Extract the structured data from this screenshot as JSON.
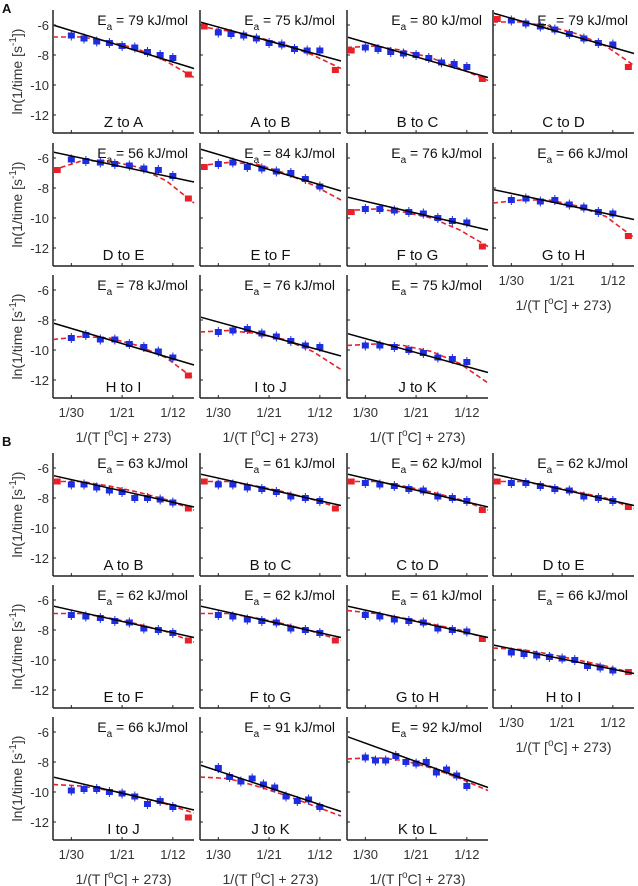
{
  "figure": {
    "panel_letters": [
      "A",
      "B"
    ],
    "ylabel": "ln(1/time [s^-1])",
    "ylabel_parts": {
      "main": "ln(1/time [s",
      "sup": "-1",
      "end": "])"
    },
    "xlabel_parts": {
      "pre": "1/(T [",
      "sup": "o",
      "post": "C] + 273)"
    },
    "xlabel": "1/(T [oC] + 273)",
    "colors": {
      "fit_line": "#000000",
      "model_curve": "#e8202a",
      "points_used": "#1f2de0",
      "points_excluded": "#e8202a",
      "axis": "#222222"
    }
  },
  "chart_data": [
    {
      "panel": "A",
      "type": "scatter",
      "xlabel": "1/(T [oC] + 273)",
      "ylabel": "ln(1/time [s^-1])",
      "x_ticks": [
        "1/30",
        "1/21",
        "1/12"
      ],
      "y_ticks": [
        -6,
        -8,
        -10,
        -12
      ],
      "ylim": [
        -13.2,
        -5.0
      ],
      "grid": false,
      "subplots": [
        {
          "label": "Z to A",
          "ea": "79",
          "line": [
            -6.0,
            -8.9
          ],
          "curve": [
            -6.8,
            -6.8,
            -7.1,
            -7.6,
            -8.4,
            -9.5
          ],
          "points": [
            -6.7,
            -6.9,
            -7.1,
            -7.2,
            -7.4,
            -7.5,
            -7.8,
            -8.0,
            -8.2
          ],
          "red_pts": [
            -9.3
          ]
        },
        {
          "label": "A to B",
          "ea": "75",
          "line": [
            -5.8,
            -8.4
          ],
          "curve": [
            -6.1,
            -6.4,
            -6.8,
            -7.3,
            -8.0,
            -8.9
          ],
          "points": [
            -6.5,
            -6.6,
            -6.7,
            -6.9,
            -7.2,
            -7.3,
            -7.6,
            -7.7,
            -7.7
          ],
          "red_pts": [
            -6.1,
            -9.0
          ]
        },
        {
          "label": "B to C",
          "ea": "80",
          "line": [
            -6.8,
            -9.5
          ],
          "curve": [
            -7.5,
            -7.4,
            -7.7,
            -8.2,
            -8.9,
            -9.7
          ],
          "points": [
            -7.5,
            -7.6,
            -7.8,
            -7.9,
            -8.0,
            -8.2,
            -8.5,
            -8.6,
            -8.8
          ],
          "red_pts": [
            -7.7,
            -9.6
          ]
        },
        {
          "label": "C to D",
          "ea": "79",
          "line": [
            -5.2,
            -7.9
          ],
          "curve": [
            -5.8,
            -5.8,
            -6.1,
            -6.6,
            -7.4,
            -8.7
          ],
          "points": [
            -5.7,
            -5.9,
            -6.1,
            -6.3,
            -6.6,
            -6.9,
            -7.2,
            -7.3
          ],
          "red_pts": [
            -5.6,
            -8.8
          ]
        },
        {
          "label": "D to E",
          "ea": "56",
          "line": [
            -5.6,
            -7.6
          ],
          "curve": [
            -6.8,
            -6.2,
            -6.2,
            -6.6,
            -7.5,
            -9.0
          ],
          "points": [
            -6.1,
            -6.2,
            -6.3,
            -6.4,
            -6.5,
            -6.7,
            -6.8,
            -7.2
          ],
          "red_pts": [
            -6.8,
            -8.7
          ]
        },
        {
          "label": "E to F",
          "ea": "84",
          "line": [
            -5.4,
            -8.2
          ],
          "curve": [
            -6.5,
            -6.3,
            -6.4,
            -7.0,
            -7.8,
            -8.8
          ],
          "points": [
            -6.4,
            -6.3,
            -6.6,
            -6.7,
            -6.9,
            -7.0,
            -7.4,
            -7.9
          ],
          "red_pts": [
            -6.6
          ]
        },
        {
          "label": "F to G",
          "ea": "76",
          "line": [
            -8.6,
            -10.8
          ],
          "curve": [
            -9.5,
            -9.4,
            -9.6,
            -10.0,
            -10.8,
            -11.9
          ],
          "points": [
            -9.4,
            -9.4,
            -9.5,
            -9.6,
            -9.7,
            -10.0,
            -10.2,
            -10.3
          ],
          "red_pts": [
            -9.6,
            -11.9
          ]
        },
        {
          "label": "G to H",
          "ea": "66",
          "line": [
            -8.1,
            -10.1
          ],
          "curve": [
            -9.0,
            -8.8,
            -8.8,
            -9.2,
            -9.9,
            -11.3
          ],
          "points": [
            -8.8,
            -8.7,
            -8.9,
            -8.8,
            -9.1,
            -9.3,
            -9.6,
            -9.7
          ],
          "red_pts": [
            -11.2
          ]
        },
        {
          "label": "H to I",
          "ea": "78",
          "line": [
            -8.2,
            -11.0
          ],
          "curve": [
            -9.3,
            -9.1,
            -9.2,
            -9.7,
            -10.5,
            -11.9
          ],
          "points": [
            -9.2,
            -9.0,
            -9.3,
            -9.3,
            -9.6,
            -9.8,
            -10.1,
            -10.5
          ],
          "red_pts": [
            -11.7
          ]
        },
        {
          "label": "I to J",
          "ea": "76",
          "line": [
            -7.8,
            -10.4
          ],
          "curve": [
            -8.8,
            -8.7,
            -8.9,
            -9.3,
            -10.1,
            -11.3
          ],
          "points": [
            -8.8,
            -8.7,
            -8.6,
            -8.9,
            -9.1,
            -9.4,
            -9.7,
            -9.8
          ],
          "red_pts": []
        },
        {
          "label": "J to K",
          "ea": "75",
          "line": [
            -8.9,
            -11.5
          ],
          "curve": [
            -9.7,
            -9.6,
            -9.7,
            -10.1,
            -10.9,
            -12.2
          ],
          "points": [
            -9.7,
            -9.7,
            -9.8,
            -10.0,
            -10.2,
            -10.5,
            -10.6,
            -10.8
          ],
          "red_pts": []
        }
      ]
    },
    {
      "panel": "B",
      "type": "scatter",
      "xlabel": "1/(T [oC] + 273)",
      "ylabel": "ln(1/time [s^-1])",
      "x_ticks": [
        "1/30",
        "1/21",
        "1/12"
      ],
      "y_ticks": [
        -6,
        -8,
        -10,
        -12
      ],
      "ylim": [
        -13.2,
        -5.0
      ],
      "grid": false,
      "subplots": [
        {
          "label": "A to B",
          "ea": "63",
          "line": [
            -6.5,
            -8.6
          ],
          "curve": [
            -6.9,
            -6.9,
            -7.2,
            -7.6,
            -8.1,
            -8.8
          ],
          "points": [
            -7.1,
            -7.1,
            -7.3,
            -7.5,
            -7.6,
            -8.0,
            -8.0,
            -8.1,
            -8.3
          ],
          "red_pts": [
            -6.9,
            -8.7
          ]
        },
        {
          "label": "B to C",
          "ea": "61",
          "line": [
            -6.4,
            -8.5
          ],
          "curve": [
            -6.9,
            -6.9,
            -7.2,
            -7.6,
            -8.1,
            -8.7
          ],
          "points": [
            -7.1,
            -7.1,
            -7.3,
            -7.4,
            -7.6,
            -7.9,
            -8.0,
            -8.2
          ],
          "red_pts": [
            -6.9,
            -8.7
          ]
        },
        {
          "label": "C to D",
          "ea": "62",
          "line": [
            -6.4,
            -8.6
          ],
          "curve": [
            -6.9,
            -6.9,
            -7.2,
            -7.6,
            -8.1,
            -8.8
          ],
          "points": [
            -7.0,
            -7.1,
            -7.2,
            -7.4,
            -7.5,
            -7.9,
            -8.0,
            -8.2
          ],
          "red_pts": [
            -6.9,
            -8.8
          ]
        },
        {
          "label": "D to E",
          "ea": "62",
          "line": [
            -6.4,
            -8.5
          ],
          "curve": [
            -6.9,
            -6.9,
            -7.2,
            -7.6,
            -8.0,
            -8.7
          ],
          "points": [
            -7.0,
            -7.0,
            -7.2,
            -7.4,
            -7.5,
            -7.9,
            -8.0,
            -8.2
          ],
          "red_pts": [
            -6.9,
            -8.6
          ]
        },
        {
          "label": "E to F",
          "ea": "62",
          "line": [
            -6.4,
            -8.5
          ],
          "curve": [
            -6.9,
            -6.9,
            -7.2,
            -7.6,
            -8.1,
            -8.8
          ],
          "points": [
            -7.0,
            -7.1,
            -7.2,
            -7.4,
            -7.5,
            -7.9,
            -8.0,
            -8.2
          ],
          "red_pts": [
            -8.7
          ]
        },
        {
          "label": "F to G",
          "ea": "62",
          "line": [
            -6.4,
            -8.5
          ],
          "curve": [
            -6.9,
            -6.9,
            -7.2,
            -7.6,
            -8.1,
            -8.7
          ],
          "points": [
            -7.0,
            -7.1,
            -7.3,
            -7.4,
            -7.5,
            -7.9,
            -8.0,
            -8.2
          ],
          "red_pts": [
            -8.7
          ]
        },
        {
          "label": "G to H",
          "ea": "61",
          "line": [
            -6.4,
            -8.5
          ],
          "curve": [
            -6.7,
            -6.9,
            -7.2,
            -7.6,
            -8.0,
            -8.6
          ],
          "points": [
            -7.0,
            -7.1,
            -7.3,
            -7.4,
            -7.5,
            -7.9,
            -8.0,
            -8.1
          ],
          "red_pts": [
            -8.6
          ]
        },
        {
          "label": "H to I",
          "ea": "66",
          "line": [
            -9.0,
            -10.9
          ],
          "curve": [
            -9.2,
            -9.3,
            -9.6,
            -10.0,
            -10.4,
            -10.9
          ],
          "points": [
            -9.5,
            -9.6,
            -9.7,
            -9.8,
            -9.9,
            -10.0,
            -10.4,
            -10.5,
            -10.7
          ],
          "red_pts": [
            -10.8
          ]
        },
        {
          "label": "I to J",
          "ea": "66",
          "line": [
            -9.0,
            -11.2
          ],
          "curve": [
            -9.5,
            -9.6,
            -9.9,
            -10.3,
            -10.8,
            -11.4
          ],
          "points": [
            -9.9,
            -9.8,
            -9.8,
            -10.0,
            -10.1,
            -10.3,
            -10.8,
            -10.6,
            -11.0
          ],
          "red_pts": [
            -11.7
          ]
        },
        {
          "label": "J to K",
          "ea": "91",
          "line": [
            -8.2,
            -11.3
          ],
          "curve": [
            -9.0,
            -9.1,
            -9.6,
            -10.2,
            -10.9,
            -11.6
          ],
          "points": [
            -8.4,
            -9.0,
            -9.3,
            -9.1,
            -9.5,
            -9.7,
            -10.3,
            -10.6,
            -10.5,
            -11.0
          ],
          "red_pts": []
        },
        {
          "label": "K to L",
          "ea": "92",
          "line": [
            -6.3,
            -9.7
          ],
          "curve": [
            -7.8,
            -7.7,
            -7.9,
            -8.4,
            -9.1,
            -9.9
          ],
          "points": [
            -7.7,
            -7.9,
            -7.9,
            -7.6,
            -8.0,
            -8.1,
            -8.0,
            -8.7,
            -8.5,
            -8.9,
            -9.6
          ],
          "red_pts": []
        }
      ]
    }
  ]
}
